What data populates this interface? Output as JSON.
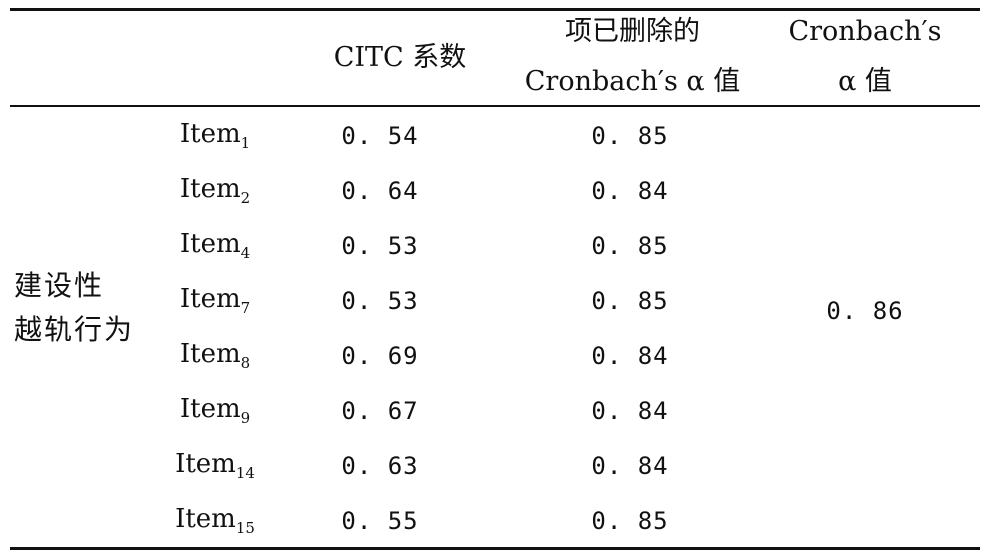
{
  "table": {
    "headers": {
      "col2": "CITC 系数",
      "col3_line1": "项已删除的",
      "col3_line2": "Cronbach′s α 值",
      "col4_line1": "Cronbach′s",
      "col4_line2": "α 值"
    },
    "group_label_line1": "建设性",
    "group_label_line2": "越轨行为",
    "rows": [
      {
        "item": "Item",
        "sub": "1",
        "citc": "0. 54",
        "alpha_if_deleted": "0. 85"
      },
      {
        "item": "Item",
        "sub": "2",
        "citc": "0. 64",
        "alpha_if_deleted": "0. 84"
      },
      {
        "item": "Item",
        "sub": "4",
        "citc": "0. 53",
        "alpha_if_deleted": "0. 85"
      },
      {
        "item": "Item",
        "sub": "7",
        "citc": "0. 53",
        "alpha_if_deleted": "0. 85"
      },
      {
        "item": "Item",
        "sub": "8",
        "citc": "0. 69",
        "alpha_if_deleted": "0. 84"
      },
      {
        "item": "Item",
        "sub": "9",
        "citc": "0. 67",
        "alpha_if_deleted": "0. 84"
      },
      {
        "item": "Item",
        "sub": "14",
        "citc": "0. 63",
        "alpha_if_deleted": "0. 84"
      },
      {
        "item": "Item",
        "sub": "15",
        "citc": "0. 55",
        "alpha_if_deleted": "0. 85"
      }
    ],
    "overall_alpha": "0. 86"
  }
}
